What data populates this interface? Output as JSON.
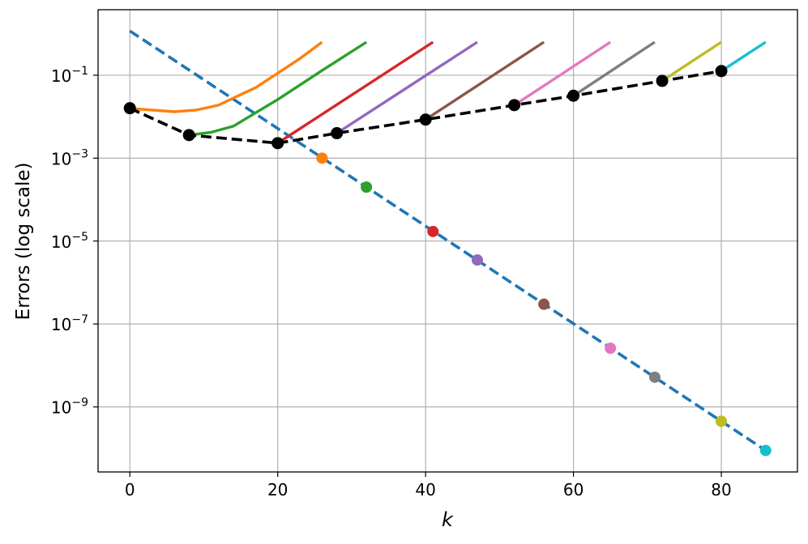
{
  "chart_data": {
    "type": "line",
    "title": "",
    "xlabel": "k",
    "ylabel": "Errors (log scale)",
    "xlim": [
      -4.3,
      90.3
    ],
    "ylim": [
      2.7e-11,
      3.8
    ],
    "yscale": "log",
    "grid": true,
    "xticks": [
      0,
      20,
      40,
      60,
      80
    ],
    "xtick_labels": [
      "0",
      "20",
      "40",
      "60",
      "80"
    ],
    "yticks": [
      0.1,
      0.001,
      1e-05,
      1e-07,
      1e-09
    ],
    "ytick_labels": [
      {
        "base": "10",
        "exp": "−1"
      },
      {
        "base": "10",
        "exp": "−3"
      },
      {
        "base": "10",
        "exp": "−5"
      },
      {
        "base": "10",
        "exp": "−7"
      },
      {
        "base": "10",
        "exp": "−9"
      }
    ],
    "reference_line": {
      "color": "#1f77b4",
      "style": "dashed",
      "x": [
        0,
        86
      ],
      "y": [
        1.17,
        8.9e-11
      ]
    },
    "restart_line": {
      "color": "#000000",
      "style": "dashed",
      "markers": true,
      "x": [
        0,
        8,
        20,
        28,
        40,
        52,
        60,
        72,
        80
      ],
      "y": [
        0.016,
        0.0036,
        0.0023,
        0.004,
        0.0085,
        0.019,
        0.032,
        0.073,
        0.126
      ]
    },
    "series": [
      {
        "color": "#ff7f0e",
        "x": [
          0,
          3,
          6,
          9,
          12,
          14,
          17,
          20,
          23,
          26
        ],
        "y": [
          0.0158,
          0.0145,
          0.0132,
          0.0145,
          0.019,
          0.0282,
          0.05,
          0.112,
          0.251,
          0.63
        ],
        "dot": {
          "x": 26,
          "y": 0.001
        }
      },
      {
        "color": "#2ca02c",
        "x": [
          8,
          11,
          14,
          20,
          26,
          32
        ],
        "y": [
          0.0036,
          0.0042,
          0.0059,
          0.026,
          0.13,
          0.63
        ],
        "dot": {
          "x": 32,
          "y": 0.0002
        }
      },
      {
        "color": "#d62728",
        "x": [
          20,
          41
        ],
        "y": [
          0.0023,
          0.63
        ],
        "dot": {
          "x": 41,
          "y": 1.7e-05
        }
      },
      {
        "color": "#9467bd",
        "x": [
          28,
          47
        ],
        "y": [
          0.004,
          0.63
        ],
        "dot": {
          "x": 47,
          "y": 3.5e-06
        }
      },
      {
        "color": "#8c564b",
        "x": [
          40,
          56
        ],
        "y": [
          0.0085,
          0.63
        ],
        "dot": {
          "x": 56,
          "y": 3e-07
        }
      },
      {
        "color": "#e377c2",
        "x": [
          52,
          65
        ],
        "y": [
          0.019,
          0.63
        ],
        "dot": {
          "x": 65,
          "y": 2.6e-08
        }
      },
      {
        "color": "#7f7f7f",
        "x": [
          60,
          71
        ],
        "y": [
          0.032,
          0.63
        ],
        "dot": {
          "x": 71,
          "y": 5.2e-09
        }
      },
      {
        "color": "#bcbd22",
        "x": [
          72,
          80
        ],
        "y": [
          0.073,
          0.63
        ],
        "dot": {
          "x": 80,
          "y": 4.5e-10
        }
      },
      {
        "color": "#17becf",
        "x": [
          80,
          86
        ],
        "y": [
          0.126,
          0.63
        ],
        "dot": {
          "x": 86,
          "y": 8.9e-11
        }
      }
    ]
  }
}
